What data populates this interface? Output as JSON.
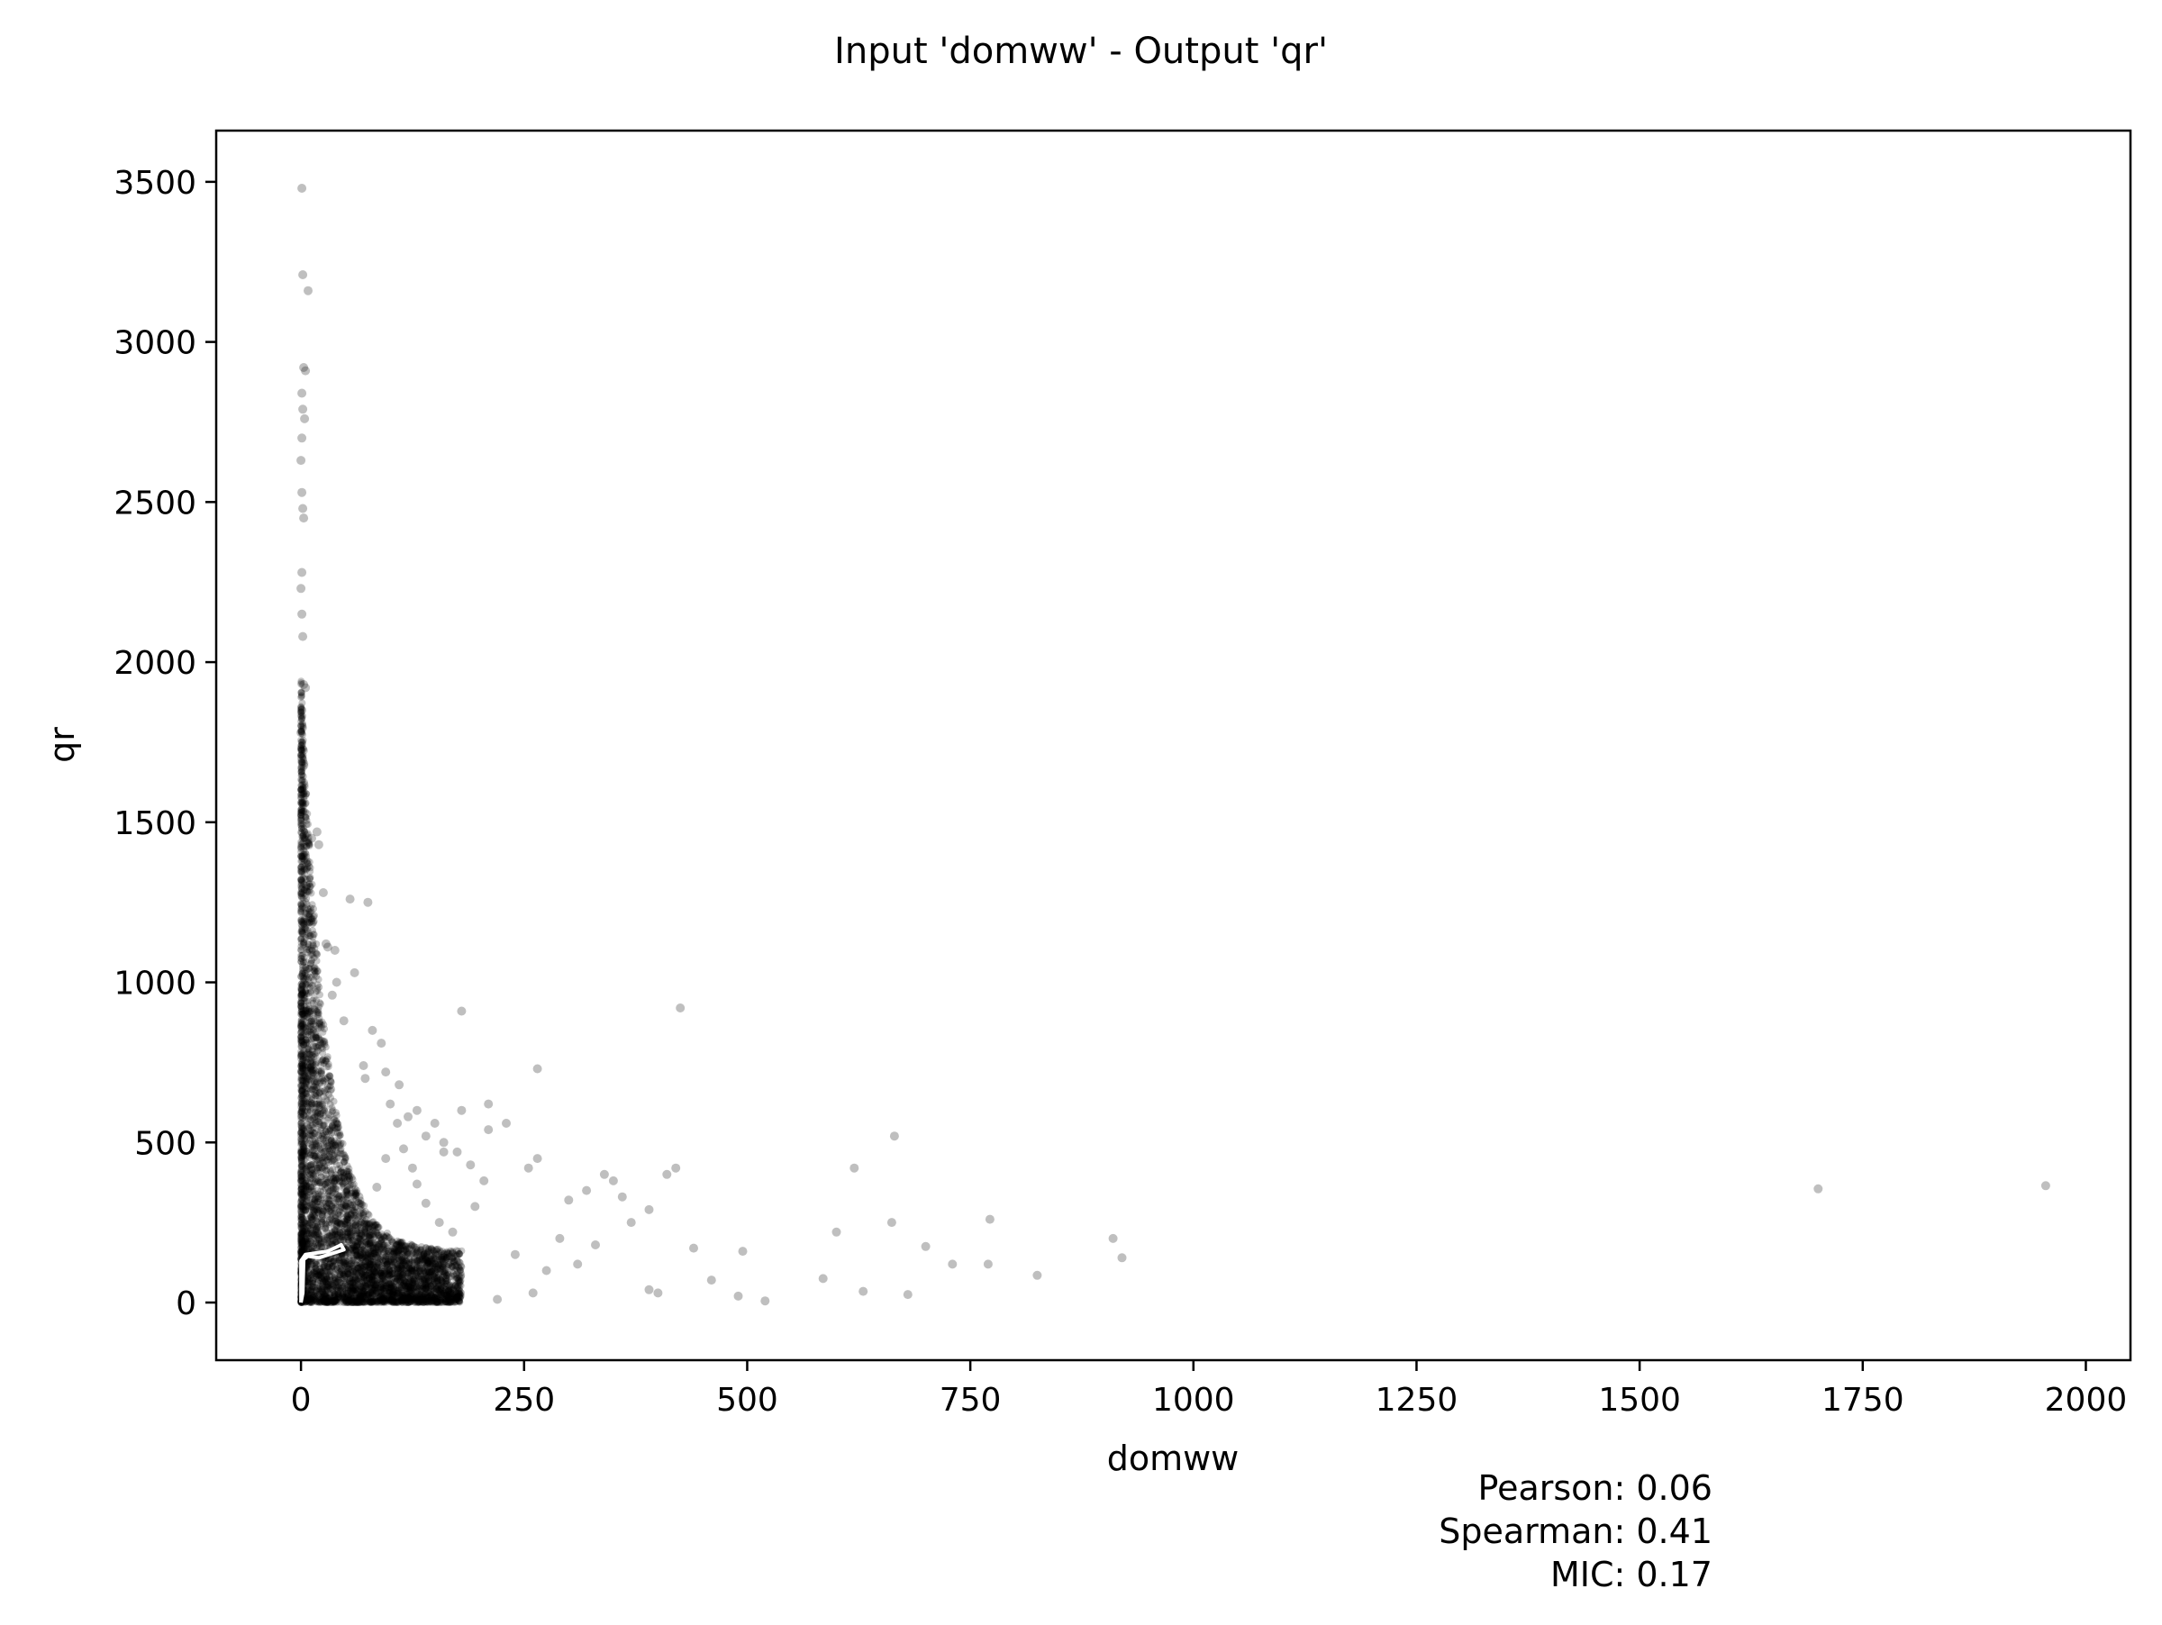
{
  "chart_data": {
    "type": "scatter",
    "title": "Input 'domww' - Output 'qr'",
    "xlabel": "domww",
    "ylabel": "qr",
    "xlim": [
      -95,
      2050
    ],
    "ylim": [
      -180,
      3660
    ],
    "xticks": [
      0,
      250,
      500,
      750,
      1000,
      1250,
      1500,
      1750,
      2000
    ],
    "yticks": [
      0,
      500,
      1000,
      1500,
      2000,
      2500,
      3000,
      3500
    ],
    "grid": false,
    "point_color": "#000000",
    "point_alpha": 0.25,
    "contour_color": "#ffffff",
    "contour": {
      "x": [
        0,
        0,
        5,
        30,
        45,
        48,
        20,
        8,
        3,
        2,
        0
      ],
      "y": [
        0,
        130,
        150,
        160,
        180,
        165,
        140,
        145,
        135,
        30,
        0
      ]
    },
    "points": {
      "x": [
        1,
        2,
        8,
        3,
        5,
        1,
        2,
        4,
        1,
        0,
        1,
        2,
        3,
        1,
        0,
        1,
        2,
        3,
        1,
        0,
        1,
        5,
        18,
        20,
        25,
        28,
        12,
        6,
        30,
        38,
        40,
        35,
        55,
        75,
        60,
        48,
        80,
        90,
        70,
        72,
        95,
        110,
        180,
        130,
        150,
        160,
        120,
        140,
        100,
        115,
        210,
        265,
        230,
        255,
        190,
        175,
        300,
        340,
        350,
        320,
        390,
        420,
        410,
        620,
        665,
        662,
        600,
        700,
        730,
        772,
        770,
        910,
        920,
        825,
        585,
        630,
        680,
        490,
        495,
        520,
        440,
        460,
        400,
        390,
        370,
        360,
        330,
        310,
        290,
        275,
        260,
        240,
        220,
        205,
        195,
        170,
        155,
        140,
        125,
        108,
        95,
        85,
        65,
        52,
        45,
        42,
        1700,
        1955,
        425,
        180,
        265,
        210,
        130,
        160
      ],
      "y": [
        3480,
        3210,
        3160,
        2920,
        2910,
        2840,
        2790,
        2760,
        2700,
        2630,
        2530,
        2480,
        2450,
        2280,
        2230,
        2150,
        2080,
        1930,
        1850,
        1780,
        1700,
        1920,
        1470,
        1430,
        1280,
        1120,
        1450,
        1300,
        1110,
        1100,
        1000,
        960,
        1260,
        1250,
        1030,
        880,
        850,
        810,
        740,
        700,
        720,
        680,
        910,
        600,
        560,
        500,
        580,
        520,
        620,
        480,
        620,
        730,
        560,
        420,
        430,
        470,
        320,
        400,
        380,
        350,
        290,
        420,
        400,
        420,
        520,
        250,
        220,
        175,
        120,
        260,
        120,
        200,
        140,
        85,
        75,
        35,
        25,
        20,
        160,
        5,
        170,
        70,
        30,
        40,
        250,
        330,
        180,
        120,
        200,
        100,
        30,
        150,
        10,
        380,
        300,
        220,
        250,
        310,
        420,
        560,
        450,
        360,
        330,
        290,
        240,
        210,
        355,
        365,
        920,
        600,
        450,
        540,
        370,
        470
      ]
    },
    "stats": {
      "pearson": "Pearson: 0.06",
      "spearman": "Spearman: 0.41",
      "mic": "MIC: 0.17"
    }
  }
}
